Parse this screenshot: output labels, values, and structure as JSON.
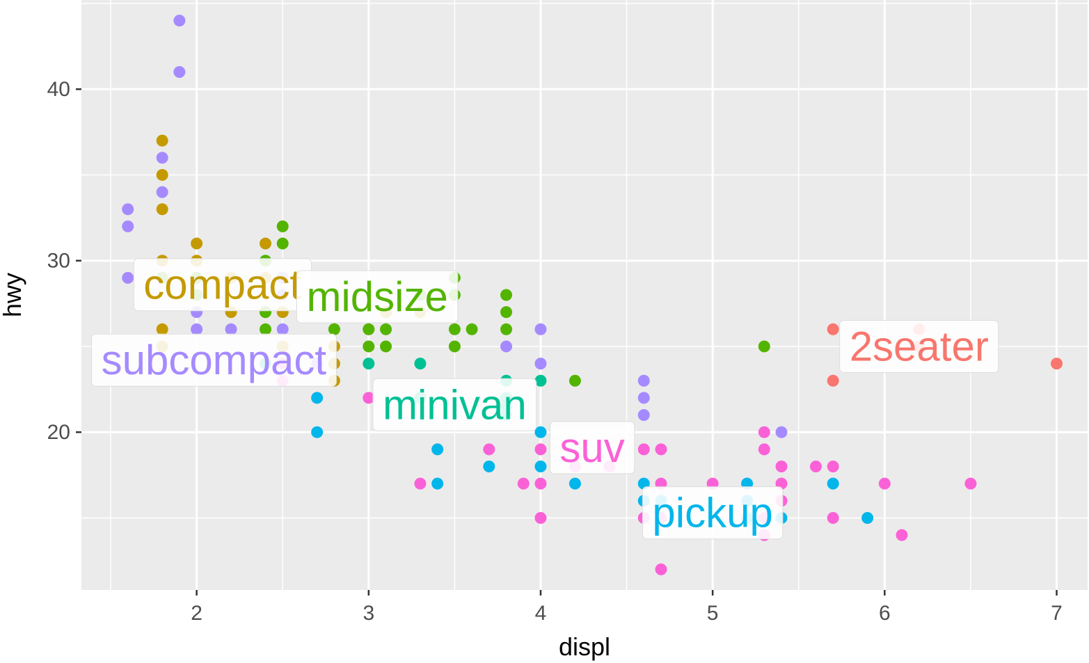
{
  "chart_data": {
    "type": "scatter",
    "title": "",
    "xlabel": "displ",
    "ylabel": "hwy",
    "xlim": [
      1.33,
      7.18
    ],
    "ylim": [
      10.8,
      45.2
    ],
    "x_ticks": [
      2,
      3,
      4,
      5,
      6,
      7
    ],
    "y_ticks": [
      20,
      30,
      40
    ],
    "grid": true,
    "background": "#EBEBEB",
    "colors": {
      "2seater": "#F8766D",
      "compact": "#C49A00",
      "midsize": "#53B400",
      "minivan": "#00C094",
      "pickup": "#00B6EB",
      "subcompact": "#A58AFF",
      "suv": "#FB61D7"
    },
    "labels": [
      {
        "class": "compact",
        "text": "compact",
        "x": 2.15,
        "y": 28.6
      },
      {
        "class": "midsize",
        "text": "midsize",
        "x": 3.05,
        "y": 27.9
      },
      {
        "class": "subcompact",
        "text": "subcompact",
        "x": 2.1,
        "y": 24.2
      },
      {
        "class": "minivan",
        "text": "minivan",
        "x": 3.5,
        "y": 21.6
      },
      {
        "class": "suv",
        "text": "suv",
        "x": 4.3,
        "y": 19.1
      },
      {
        "class": "pickup",
        "text": "pickup",
        "x": 5.0,
        "y": 15.3
      },
      {
        "class": "2seater",
        "text": "2seater",
        "x": 6.2,
        "y": 25.0
      }
    ],
    "series": [
      {
        "class": "2seater",
        "points": [
          [
            5.7,
            26
          ],
          [
            5.7,
            23
          ],
          [
            6.2,
            26
          ],
          [
            6.2,
            25
          ],
          [
            7.0,
            24
          ]
        ]
      },
      {
        "class": "compact",
        "points": [
          [
            1.8,
            37
          ],
          [
            1.8,
            35
          ],
          [
            1.8,
            33
          ],
          [
            1.8,
            30
          ],
          [
            1.8,
            26
          ],
          [
            1.8,
            25
          ],
          [
            2.0,
            31
          ],
          [
            2.0,
            30
          ],
          [
            2.0,
            29
          ],
          [
            2.2,
            29
          ],
          [
            2.2,
            27
          ],
          [
            2.4,
            31
          ],
          [
            2.4,
            29
          ],
          [
            2.4,
            27
          ],
          [
            2.5,
            29
          ],
          [
            2.5,
            27
          ],
          [
            2.5,
            25
          ],
          [
            2.8,
            26
          ],
          [
            2.8,
            25
          ],
          [
            2.8,
            24
          ],
          [
            2.8,
            23
          ],
          [
            3.0,
            26
          ],
          [
            3.1,
            27
          ],
          [
            3.3,
            28
          ],
          [
            3.3,
            27
          ]
        ]
      },
      {
        "class": "midsize",
        "points": [
          [
            1.8,
            29
          ],
          [
            2.0,
            29
          ],
          [
            2.0,
            28
          ],
          [
            2.4,
            30
          ],
          [
            2.4,
            27
          ],
          [
            2.4,
            26
          ],
          [
            2.5,
            32
          ],
          [
            2.5,
            31
          ],
          [
            2.8,
            26
          ],
          [
            3.0,
            25
          ],
          [
            3.0,
            26
          ],
          [
            3.1,
            26
          ],
          [
            3.1,
            25
          ],
          [
            3.3,
            28
          ],
          [
            3.5,
            29
          ],
          [
            3.5,
            28
          ],
          [
            3.5,
            26
          ],
          [
            3.5,
            25
          ],
          [
            3.6,
            26
          ],
          [
            3.8,
            28
          ],
          [
            3.8,
            27
          ],
          [
            3.8,
            26
          ],
          [
            4.2,
            23
          ],
          [
            5.3,
            25
          ]
        ]
      },
      {
        "class": "minivan",
        "points": [
          [
            2.4,
            24
          ],
          [
            3.0,
            24
          ],
          [
            3.3,
            24
          ],
          [
            3.3,
            22
          ],
          [
            3.8,
            23
          ],
          [
            3.8,
            22
          ],
          [
            3.8,
            21.5
          ],
          [
            3.8,
            21
          ],
          [
            4.0,
            23
          ]
        ]
      },
      {
        "class": "pickup",
        "points": [
          [
            2.7,
            22
          ],
          [
            2.7,
            20
          ],
          [
            3.4,
            19
          ],
          [
            3.4,
            17
          ],
          [
            3.7,
            18
          ],
          [
            4.0,
            20
          ],
          [
            4.0,
            18
          ],
          [
            4.2,
            17
          ],
          [
            4.6,
            17
          ],
          [
            4.6,
            16
          ],
          [
            4.7,
            16
          ],
          [
            4.7,
            15
          ],
          [
            5.2,
            17
          ],
          [
            5.2,
            16
          ],
          [
            5.2,
            15
          ],
          [
            5.4,
            15
          ],
          [
            5.7,
            17
          ],
          [
            5.9,
            15
          ]
        ]
      },
      {
        "class": "subcompact",
        "points": [
          [
            1.6,
            33
          ],
          [
            1.6,
            32
          ],
          [
            1.6,
            29
          ],
          [
            1.8,
            36
          ],
          [
            1.8,
            34
          ],
          [
            1.9,
            44
          ],
          [
            1.9,
            41
          ],
          [
            2.0,
            27
          ],
          [
            2.0,
            26
          ],
          [
            2.2,
            26
          ],
          [
            2.5,
            29
          ],
          [
            2.5,
            28
          ],
          [
            2.5,
            26
          ],
          [
            2.7,
            24
          ],
          [
            3.8,
            25
          ],
          [
            4.0,
            26
          ],
          [
            4.0,
            24
          ],
          [
            4.6,
            23
          ],
          [
            4.6,
            22
          ],
          [
            4.6,
            21
          ],
          [
            5.4,
            20
          ]
        ]
      },
      {
        "class": "suv",
        "points": [
          [
            2.5,
            24
          ],
          [
            2.5,
            23
          ],
          [
            3.0,
            22
          ],
          [
            3.3,
            17
          ],
          [
            3.7,
            19
          ],
          [
            3.9,
            17
          ],
          [
            4.0,
            19
          ],
          [
            4.0,
            17
          ],
          [
            4.0,
            15
          ],
          [
            4.2,
            18
          ],
          [
            4.4,
            18
          ],
          [
            4.6,
            19
          ],
          [
            4.6,
            15
          ],
          [
            4.7,
            19
          ],
          [
            4.7,
            17
          ],
          [
            4.7,
            15
          ],
          [
            4.7,
            12
          ],
          [
            5.0,
            17
          ],
          [
            5.3,
            20
          ],
          [
            5.3,
            19
          ],
          [
            5.3,
            15
          ],
          [
            5.3,
            14
          ],
          [
            5.4,
            18
          ],
          [
            5.4,
            17
          ],
          [
            5.4,
            16
          ],
          [
            5.6,
            18
          ],
          [
            5.7,
            18
          ],
          [
            5.7,
            15
          ],
          [
            6.0,
            17
          ],
          [
            6.1,
            14
          ],
          [
            6.5,
            17
          ]
        ]
      }
    ]
  }
}
